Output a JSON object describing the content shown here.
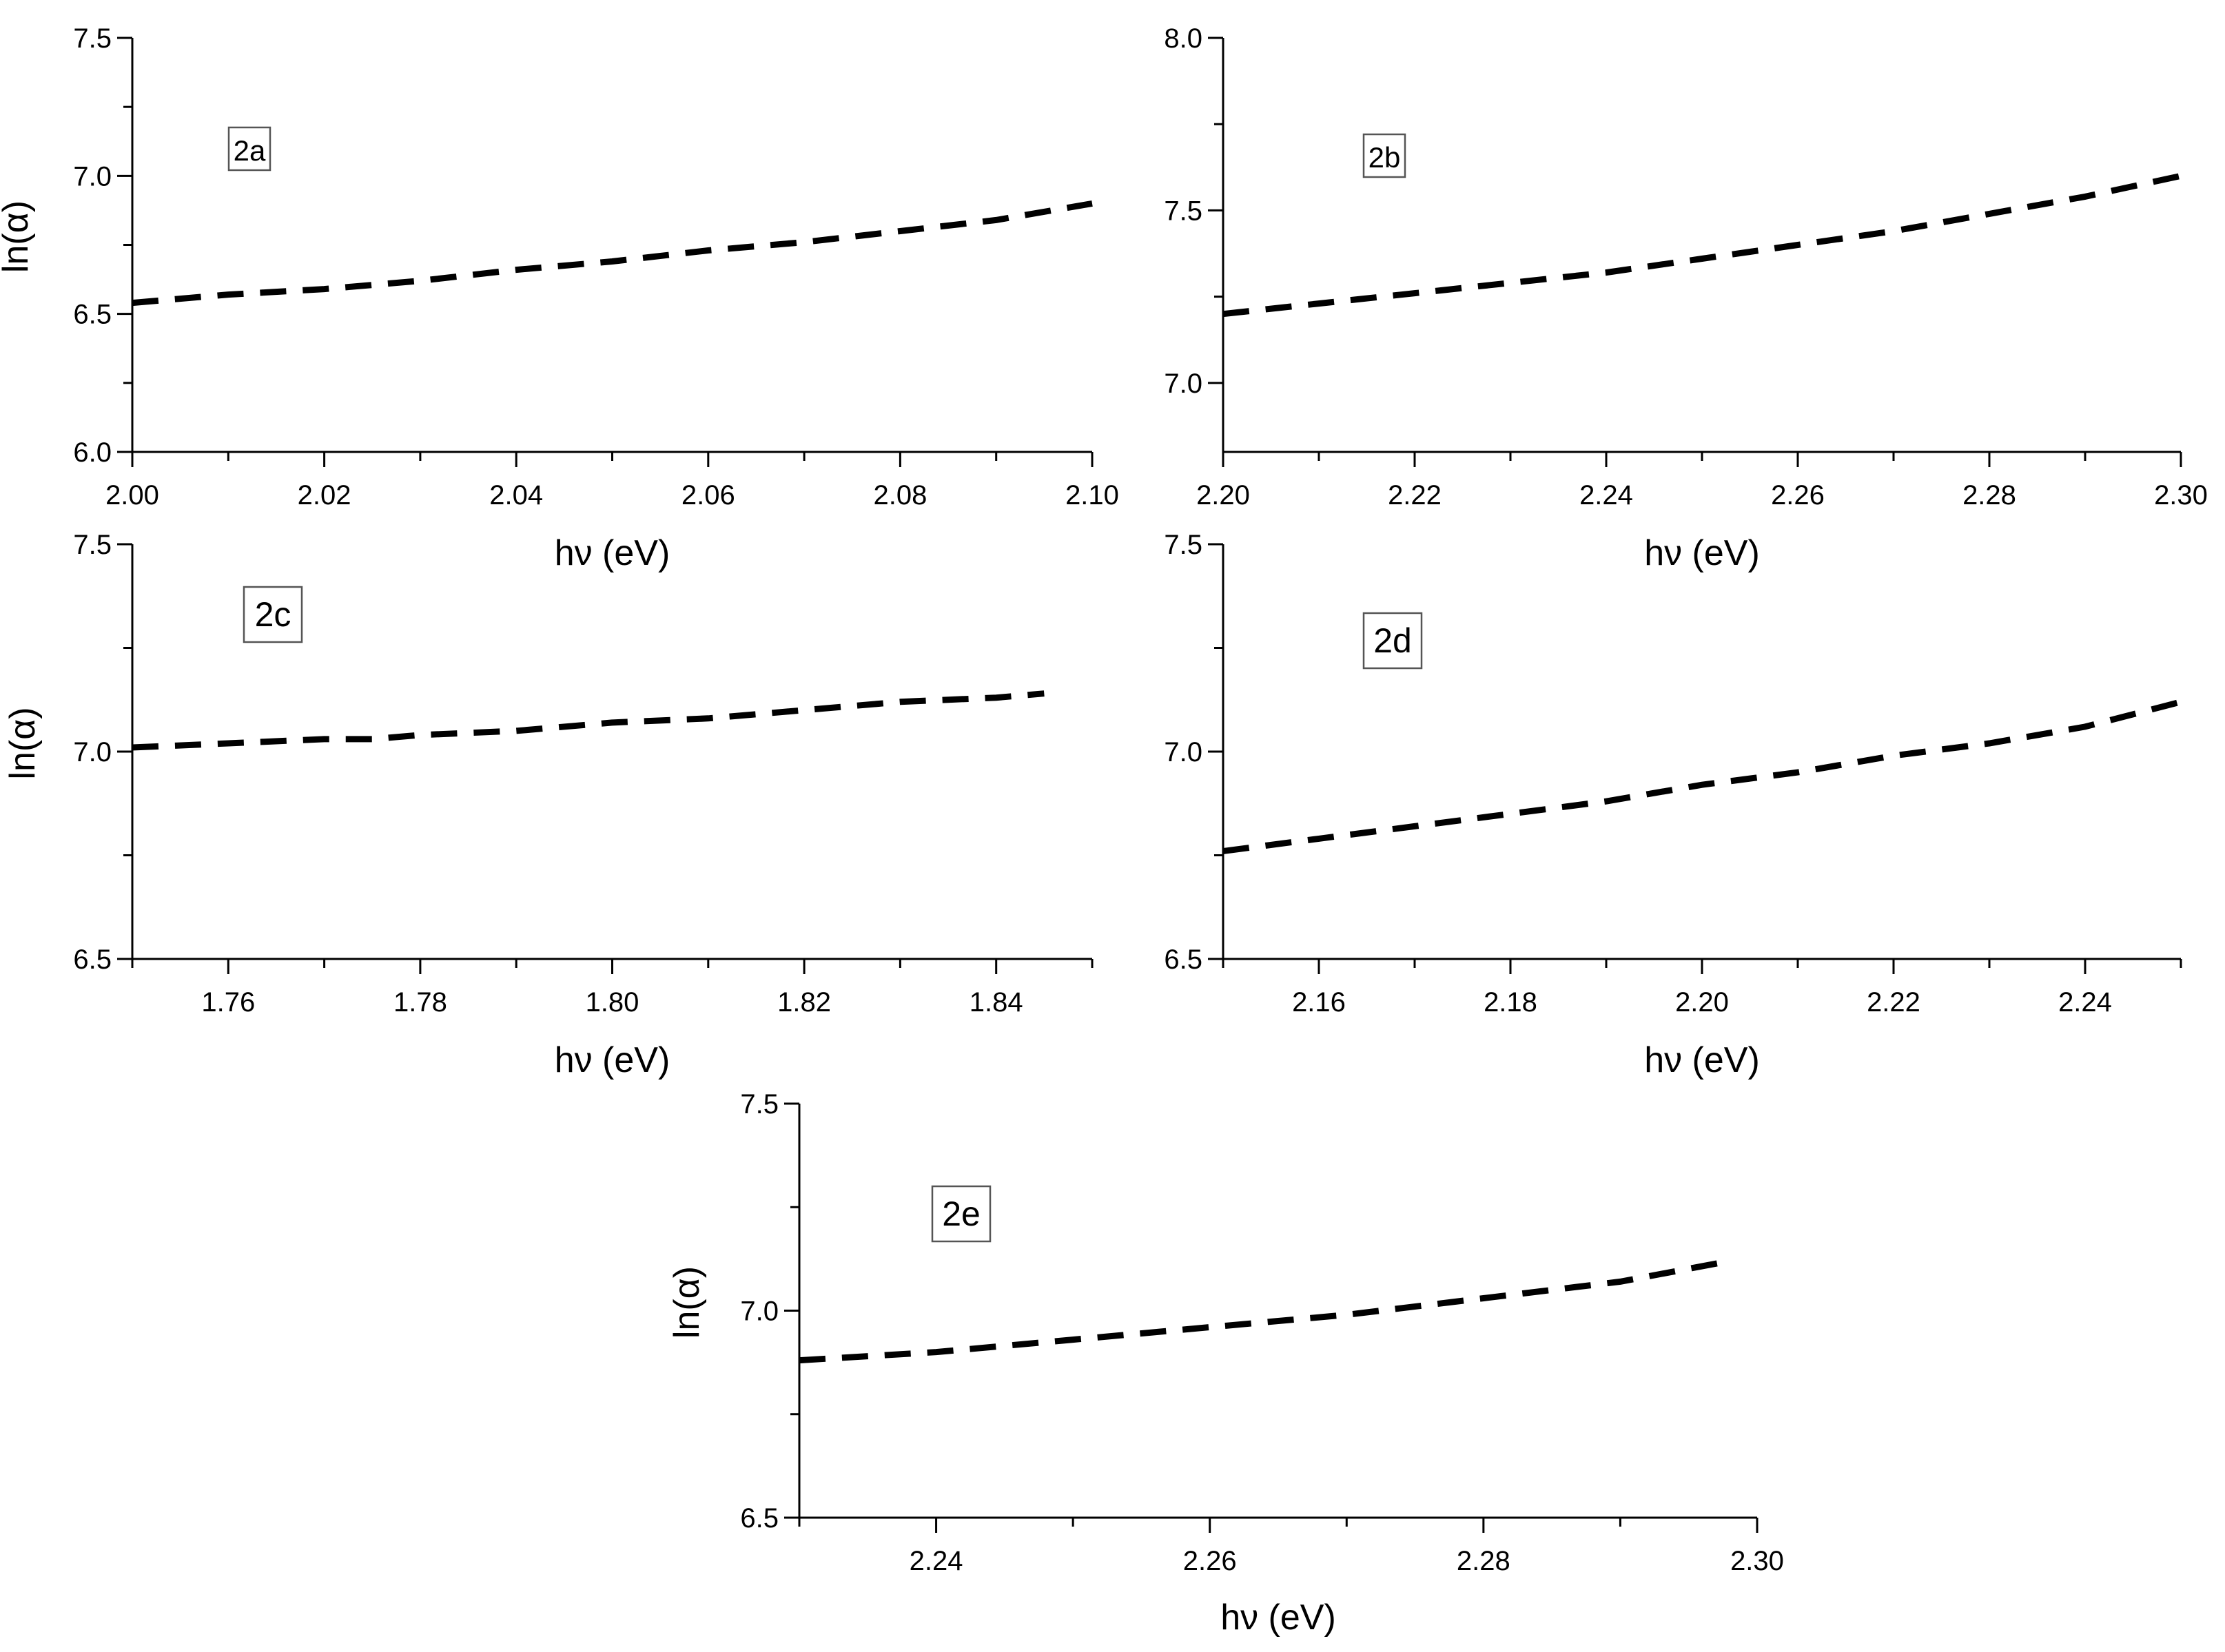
{
  "chart_data": [
    {
      "type": "line",
      "panel_label": "2a",
      "xlabel": "hν (eV)",
      "ylabel": "ln(α)",
      "xlim": [
        2.0,
        2.1
      ],
      "ylim": [
        6.0,
        7.5
      ],
      "xticks": [
        "2.00",
        "2.02",
        "2.04",
        "2.06",
        "2.08",
        "2.10"
      ],
      "yticks": [
        "6.0",
        "6.5",
        "7.0",
        "7.5"
      ],
      "series": [
        {
          "x": [
            2.0,
            2.01,
            2.02,
            2.03,
            2.04,
            2.05,
            2.06,
            2.07,
            2.08,
            2.09,
            2.1
          ],
          "y": [
            6.54,
            6.57,
            6.59,
            6.62,
            6.66,
            6.69,
            6.73,
            6.76,
            6.8,
            6.84,
            6.9
          ]
        }
      ]
    },
    {
      "type": "line",
      "panel_label": "2b",
      "xlabel": "hν (eV)",
      "ylabel": "",
      "xlim": [
        2.2,
        2.3
      ],
      "ylim": [
        6.8,
        8.0
      ],
      "xticks": [
        "2.20",
        "2.22",
        "2.24",
        "2.26",
        "2.28",
        "2.30"
      ],
      "yticks": [
        "7.0",
        "7.5",
        "8.0"
      ],
      "series": [
        {
          "x": [
            2.2,
            2.21,
            2.22,
            2.23,
            2.24,
            2.25,
            2.26,
            2.27,
            2.28,
            2.29,
            2.3
          ],
          "y": [
            7.2,
            7.23,
            7.26,
            7.29,
            7.32,
            7.36,
            7.4,
            7.44,
            7.49,
            7.54,
            7.6
          ]
        }
      ]
    },
    {
      "type": "line",
      "panel_label": "2c",
      "xlabel": "hν (eV)",
      "ylabel": "ln(α)",
      "xlim": [
        1.75,
        1.85
      ],
      "ylim": [
        6.5,
        7.5
      ],
      "xticks": [
        "1.76",
        "1.78",
        "1.80",
        "1.82",
        "1.84"
      ],
      "yticks": [
        "6.5",
        "7.0",
        "7.5"
      ],
      "series": [
        {
          "x": [
            1.75,
            1.76,
            1.77,
            1.775,
            1.78,
            1.79,
            1.8,
            1.81,
            1.82,
            1.83,
            1.84,
            1.845
          ],
          "y": [
            7.01,
            7.02,
            7.03,
            7.03,
            7.04,
            7.05,
            7.07,
            7.08,
            7.1,
            7.12,
            7.13,
            7.14
          ]
        }
      ]
    },
    {
      "type": "line",
      "panel_label": "2d",
      "xlabel": "hν (eV)",
      "ylabel": "",
      "xlim": [
        2.15,
        2.25
      ],
      "ylim": [
        6.5,
        7.5
      ],
      "xticks": [
        "2.16",
        "2.18",
        "2.20",
        "2.22",
        "2.24"
      ],
      "yticks": [
        "6.5",
        "7.0",
        "7.5"
      ],
      "series": [
        {
          "x": [
            2.15,
            2.16,
            2.17,
            2.18,
            2.19,
            2.2,
            2.21,
            2.22,
            2.23,
            2.24,
            2.25
          ],
          "y": [
            6.76,
            6.79,
            6.82,
            6.85,
            6.88,
            6.92,
            6.95,
            6.99,
            7.02,
            7.06,
            7.12
          ]
        }
      ]
    },
    {
      "type": "line",
      "panel_label": "2e",
      "xlabel": "hν (eV)",
      "ylabel": "ln(α)",
      "xlim": [
        2.23,
        2.3
      ],
      "ylim": [
        6.5,
        7.5
      ],
      "xticks": [
        "2.24",
        "2.26",
        "2.28",
        "2.30"
      ],
      "yticks": [
        "6.5",
        "7.0",
        "7.5"
      ],
      "series": [
        {
          "x": [
            2.23,
            2.235,
            2.24,
            2.25,
            2.26,
            2.27,
            2.28,
            2.29,
            2.298
          ],
          "y": [
            6.88,
            6.89,
            6.9,
            6.93,
            6.96,
            6.99,
            7.03,
            7.07,
            7.12
          ]
        }
      ]
    }
  ]
}
